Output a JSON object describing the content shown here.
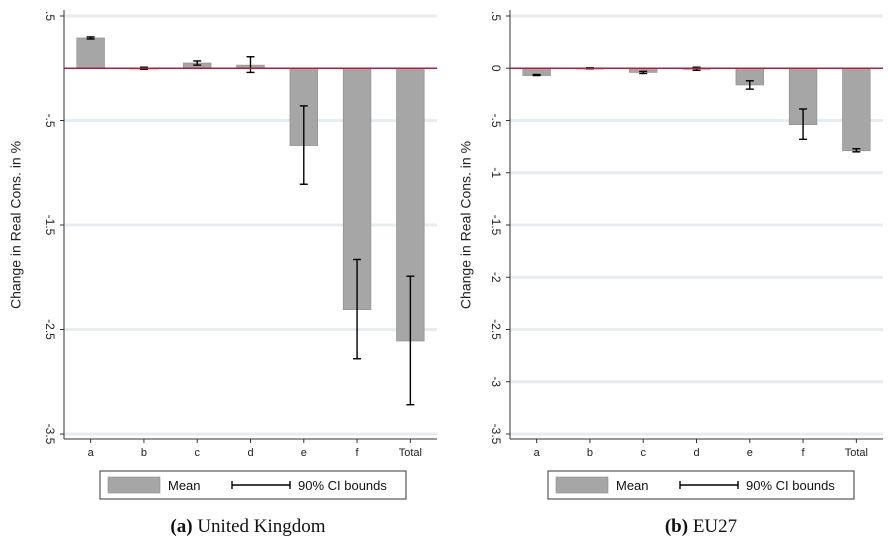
{
  "colors": {
    "bar_fill": "#a6a6a6",
    "bar_stroke": "#8a8a8a",
    "zero_line": "#b0203a",
    "grid": "#e6ecef",
    "error_bar": "#000000"
  },
  "legend": {
    "mean_label": "Mean",
    "ci_label": "90% CI bounds"
  },
  "chart_data": [
    {
      "type": "bar",
      "panel_letter": "(a)",
      "panel_title": "United Kingdom",
      "ylabel": "Change in Real Cons. in %",
      "xlabel": "",
      "categories": [
        "a",
        "b",
        "c",
        "d",
        "e",
        "f",
        "Total"
      ],
      "values": [
        0.29,
        0.0,
        0.05,
        0.03,
        -0.74,
        -2.31,
        -2.61
      ],
      "ci_lower": [
        0.28,
        -0.01,
        0.03,
        -0.04,
        -1.11,
        -2.78,
        -3.22
      ],
      "ci_upper": [
        0.3,
        0.01,
        0.07,
        0.11,
        -0.36,
        -1.83,
        -1.99
      ],
      "ylim": [
        -3.5,
        0.5
      ],
      "ytick_values": [
        0.5,
        -0.5,
        -1.5,
        -2.5,
        -3.5
      ],
      "ytick_labels": [
        ".5",
        "-.5",
        "-1.5",
        "-2.5",
        "-3.5"
      ],
      "grid": true,
      "legend_position": "bottom"
    },
    {
      "type": "bar",
      "panel_letter": "(b)",
      "panel_title": "EU27",
      "ylabel": "Change in Real Cons. in %",
      "xlabel": "",
      "categories": [
        "a",
        "b",
        "c",
        "d",
        "e",
        "f",
        "Total"
      ],
      "values": [
        -0.07,
        0.0,
        -0.04,
        -0.01,
        -0.16,
        -0.54,
        -0.79
      ],
      "ci_lower": [
        -0.07,
        -0.005,
        -0.05,
        -0.02,
        -0.2,
        -0.68,
        -0.8
      ],
      "ci_upper": [
        -0.06,
        0.005,
        -0.03,
        0.01,
        -0.12,
        -0.39,
        -0.77
      ],
      "ylim": [
        -3.5,
        0.5
      ],
      "ytick_values": [
        0.5,
        0,
        -0.5,
        -1,
        -1.5,
        -2,
        -2.5,
        -3,
        -3.5
      ],
      "ytick_labels": [
        ".5",
        "0",
        "-.5",
        "-1",
        "-1.5",
        "-2",
        "-2.5",
        "-3",
        "-3.5"
      ],
      "grid": true,
      "legend_position": "bottom"
    }
  ]
}
